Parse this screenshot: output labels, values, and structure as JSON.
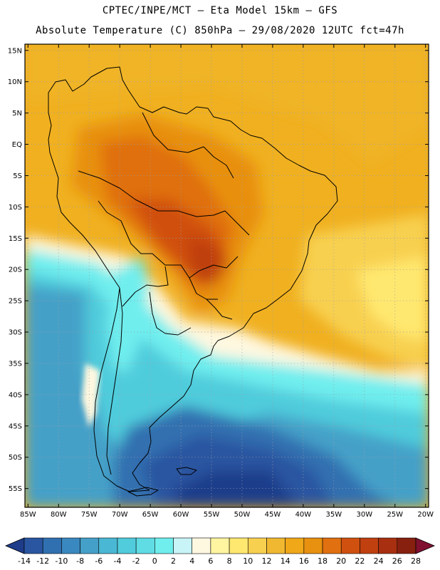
{
  "header": {
    "title_line1": "CPTEC/INPE/MCT –  Eta Model 15km – GFS",
    "title_line2": "Absolute Temperature (C) 850hPa – 29/08/2020 12UTC fct=47h"
  },
  "map": {
    "lat_labels": [
      "15N",
      "10N",
      "5N",
      "EQ",
      "5S",
      "10S",
      "15S",
      "20S",
      "25S",
      "30S",
      "35S",
      "40S",
      "45S",
      "50S",
      "55S"
    ],
    "lat_values": [
      15,
      10,
      5,
      0,
      -5,
      -10,
      -15,
      -20,
      -25,
      -30,
      -35,
      -40,
      -45,
      -50,
      -55
    ],
    "lon_labels": [
      "85W",
      "80W",
      "75W",
      "70W",
      "65W",
      "60W",
      "55W",
      "50W",
      "45W",
      "40W",
      "35W",
      "30W",
      "25W",
      "20W"
    ],
    "lon_values": [
      -85,
      -80,
      -75,
      -70,
      -65,
      -60,
      -55,
      -50,
      -45,
      -40,
      -35,
      -30,
      -25,
      -20
    ],
    "lon_range": [
      -85.5,
      -19.5
    ],
    "lat_range": [
      -58,
      16
    ]
  },
  "colorbar": {
    "labels": [
      "-14",
      "-12",
      "-10",
      "-8",
      "-6",
      "-4",
      "-2",
      "0",
      "2",
      "4",
      "6",
      "8",
      "10",
      "12",
      "14",
      "16",
      "18",
      "20",
      "22",
      "24",
      "26",
      "28"
    ],
    "colors": [
      "#1e3c8a",
      "#2a55a0",
      "#3070b0",
      "#3a88c0",
      "#44a0c8",
      "#4ab8d4",
      "#50ccdc",
      "#60dce4",
      "#70eeee",
      "#c8f4f8",
      "#fff8e0",
      "#fff4a0",
      "#ffe870",
      "#f8d050",
      "#f0b830",
      "#f0a818",
      "#e89010",
      "#e07010",
      "#d05010",
      "#c04010",
      "#a83010",
      "#882010",
      "#801030"
    ]
  },
  "chart_data": {
    "type": "heatmap",
    "title": "Absolute Temperature (C) 850hPa – 29/08/2020 12UTC fct=47h",
    "variable": "Absolute Temperature (C) at 850hPa",
    "model": "Eta Model 15km – GFS",
    "x_range_deg": [
      -85,
      -20
    ],
    "y_range_deg": [
      -55,
      15
    ],
    "scale_min": -14,
    "scale_max": 28,
    "scale_step": 2,
    "summary": "Warmest (20 to 24 C) over central South America; cold (-14 to 0 C) over the southern oceans and Patagonia"
  }
}
